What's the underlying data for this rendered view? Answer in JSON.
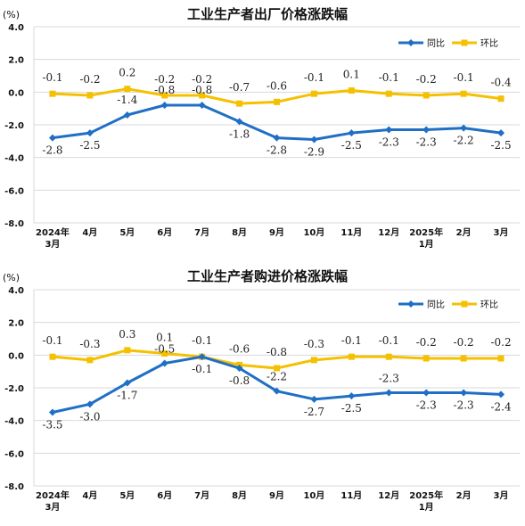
{
  "chart_data": [
    {
      "type": "line",
      "title": "工业生产者出厂价格涨跌幅",
      "unit": "(%)",
      "categories": [
        [
          "2024年",
          "3月"
        ],
        [
          "4月"
        ],
        [
          "5月"
        ],
        [
          "6月"
        ],
        [
          "7月"
        ],
        [
          "8月"
        ],
        [
          "9月"
        ],
        [
          "10月"
        ],
        [
          "11月"
        ],
        [
          "12月"
        ],
        [
          "2025年",
          "1月"
        ],
        [
          "2月"
        ],
        [
          "3月"
        ]
      ],
      "ylim": [
        -8.0,
        4.0
      ],
      "yticks": [
        "4.0",
        "2.0",
        "0.0",
        "-2.0",
        "-4.0",
        "-6.0",
        "-8.0"
      ],
      "ytick_values": [
        4,
        2,
        0,
        -2,
        -4,
        -6,
        -8
      ],
      "grid": true,
      "legend_position": "top-right",
      "series": [
        {
          "name": "同比",
          "color": "#1f6fc5",
          "values": [
            -2.8,
            -2.5,
            -1.4,
            -0.8,
            -0.8,
            -1.8,
            -2.8,
            -2.9,
            -2.5,
            -2.3,
            -2.3,
            -2.2,
            -2.5
          ],
          "labels": [
            "-2.8",
            "-2.5",
            "-1.4",
            "-0.8",
            "-0.8",
            "-1.8",
            "-2.8",
            "-2.9",
            "-2.5",
            "-2.3",
            "-2.3",
            "-2.2",
            "-2.5"
          ]
        },
        {
          "name": "环比",
          "color": "#f5c000",
          "values": [
            -0.1,
            -0.2,
            0.2,
            -0.2,
            -0.2,
            -0.7,
            -0.6,
            -0.1,
            0.1,
            -0.1,
            -0.2,
            -0.1,
            -0.4
          ],
          "labels": [
            "-0.1",
            "-0.2",
            "0.2",
            "-0.2",
            "-0.2",
            "-0.7",
            "-0.6",
            "-0.1",
            "0.1",
            "-0.1",
            "-0.2",
            "-0.1",
            "-0.4"
          ]
        }
      ]
    },
    {
      "type": "line",
      "title": "工业生产者购进价格涨跌幅",
      "unit": "(%)",
      "categories": [
        [
          "2024年",
          "3月"
        ],
        [
          "4月"
        ],
        [
          "5月"
        ],
        [
          "6月"
        ],
        [
          "7月"
        ],
        [
          "8月"
        ],
        [
          "9月"
        ],
        [
          "10月"
        ],
        [
          "11月"
        ],
        [
          "12月"
        ],
        [
          "2025年",
          "1月"
        ],
        [
          "2月"
        ],
        [
          "3月"
        ]
      ],
      "ylim": [
        -8.0,
        4.0
      ],
      "yticks": [
        "4.0",
        "2.0",
        "0.0",
        "-2.0",
        "-4.0",
        "-6.0",
        "-8.0"
      ],
      "ytick_values": [
        4,
        2,
        0,
        -2,
        -4,
        -6,
        -8
      ],
      "grid": true,
      "legend_position": "top-right",
      "series": [
        {
          "name": "同比",
          "color": "#1f6fc5",
          "values": [
            -3.5,
            -3.0,
            -1.7,
            -0.5,
            -0.1,
            -0.8,
            -2.2,
            -2.7,
            -2.5,
            -2.3,
            -2.3,
            -2.3,
            -2.4
          ],
          "labels": [
            "-3.5",
            "-3.0",
            "-1.7",
            "-0.5",
            "-0.1",
            "-0.8",
            "-2.2",
            "-2.7",
            "-2.5",
            "-2.3",
            "-2.3",
            "-2.3",
            "-2.4"
          ]
        },
        {
          "name": "环比",
          "color": "#f5c000",
          "values": [
            -0.1,
            -0.3,
            0.3,
            0.1,
            -0.1,
            -0.6,
            -0.8,
            -0.3,
            -0.1,
            -0.1,
            -0.2,
            -0.2,
            -0.2
          ],
          "labels": [
            "-0.1",
            "-0.3",
            "0.3",
            "0.1",
            "-0.1",
            "-0.6",
            "-0.8",
            "-0.3",
            "-0.1",
            "-0.1",
            "-0.2",
            "-0.2",
            "-0.2"
          ]
        }
      ]
    }
  ]
}
